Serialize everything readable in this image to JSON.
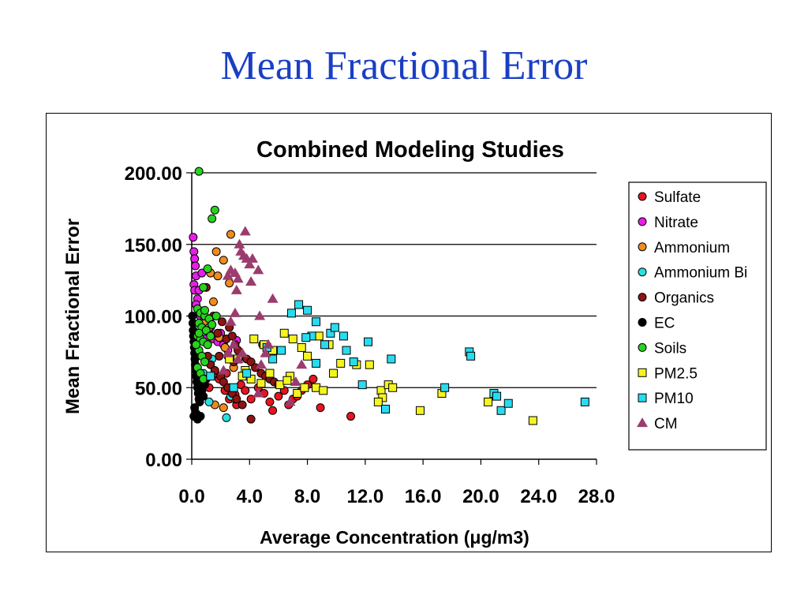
{
  "slide": {
    "title": "Mean Fractional Error"
  },
  "chart_data": {
    "type": "scatter",
    "title": "Combined Modeling Studies",
    "xlabel": "Average Concentration (μg/m3)",
    "ylabel": "Mean Fractional Error",
    "xlim": [
      0,
      28
    ],
    "ylim": [
      0,
      200
    ],
    "xticks": [
      "0.0",
      "4.0",
      "8.0",
      "12.0",
      "16.0",
      "20.0",
      "24.0",
      "28.0"
    ],
    "yticks": [
      "0.00",
      "50.00",
      "100.00",
      "150.00",
      "200.00"
    ],
    "grid": "horizontal",
    "legend_position": "right",
    "series": [
      {
        "name": "Sulfate",
        "marker": "circle",
        "color": "#e8141e",
        "points": [
          [
            1.2,
            50
          ],
          [
            1.6,
            60
          ],
          [
            1.9,
            56
          ],
          [
            2.3,
            48
          ],
          [
            2.6,
            42
          ],
          [
            3.0,
            45
          ],
          [
            3.4,
            52
          ],
          [
            3.7,
            48
          ],
          [
            4.1,
            42
          ],
          [
            4.6,
            50
          ],
          [
            5.0,
            46
          ],
          [
            5.4,
            40
          ],
          [
            5.6,
            34
          ],
          [
            6.0,
            44
          ],
          [
            6.4,
            48
          ],
          [
            6.7,
            38
          ],
          [
            7.0,
            42
          ],
          [
            7.3,
            44
          ],
          [
            7.6,
            48
          ],
          [
            8.0,
            52
          ],
          [
            8.4,
            56
          ],
          [
            8.9,
            36
          ],
          [
            11.0,
            30
          ],
          [
            2.4,
            60
          ],
          [
            3.1,
            38
          ]
        ]
      },
      {
        "name": "Nitrate",
        "marker": "circle",
        "color": "#e81ee8",
        "points": [
          [
            0.1,
            155
          ],
          [
            0.15,
            145
          ],
          [
            0.2,
            140
          ],
          [
            0.25,
            135
          ],
          [
            0.3,
            128
          ],
          [
            0.15,
            122
          ],
          [
            0.2,
            118
          ],
          [
            0.4,
            112
          ],
          [
            0.3,
            108
          ],
          [
            0.5,
            104
          ],
          [
            0.6,
            100
          ],
          [
            0.8,
            96
          ],
          [
            1.0,
            92
          ],
          [
            1.2,
            88
          ],
          [
            1.5,
            84
          ],
          [
            1.8,
            82
          ],
          [
            2.0,
            88
          ],
          [
            2.2,
            80
          ],
          [
            2.5,
            76
          ],
          [
            3.1,
            83
          ],
          [
            0.7,
            130
          ],
          [
            0.5,
            118
          ],
          [
            1.3,
            92
          ],
          [
            0.9,
            84
          ]
        ]
      },
      {
        "name": "Ammonium",
        "marker": "circle",
        "color": "#f08c1e",
        "points": [
          [
            2.7,
            157
          ],
          [
            1.7,
            145
          ],
          [
            2.2,
            139
          ],
          [
            1.3,
            130
          ],
          [
            1.8,
            128
          ],
          [
            1.5,
            110
          ],
          [
            2.6,
            123
          ],
          [
            0.9,
            95
          ],
          [
            1.2,
            92
          ],
          [
            1.9,
            85
          ],
          [
            2.3,
            78
          ],
          [
            2.5,
            72
          ],
          [
            2.9,
            64
          ],
          [
            1.6,
            38
          ],
          [
            2.2,
            36
          ],
          [
            3.0,
            42
          ]
        ]
      },
      {
        "name": "Ammonium Bi",
        "marker": "circle",
        "color": "#28e0e0",
        "points": [
          [
            1.2,
            40
          ],
          [
            2.4,
            29
          ],
          [
            2.7,
            44
          ],
          [
            1.4,
            70
          ],
          [
            0.8,
            60
          ]
        ]
      },
      {
        "name": "Organics",
        "marker": "circle",
        "color": "#8c1414",
        "points": [
          [
            1.0,
            120
          ],
          [
            1.5,
            100
          ],
          [
            1.8,
            88
          ],
          [
            2.1,
            96
          ],
          [
            2.4,
            84
          ],
          [
            2.6,
            92
          ],
          [
            2.8,
            86
          ],
          [
            3.0,
            80
          ],
          [
            3.2,
            76
          ],
          [
            3.5,
            72
          ],
          [
            3.8,
            70
          ],
          [
            4.1,
            68
          ],
          [
            4.4,
            64
          ],
          [
            4.8,
            60
          ],
          [
            5.1,
            58
          ],
          [
            5.4,
            56
          ],
          [
            5.7,
            54
          ],
          [
            6.0,
            52
          ],
          [
            1.3,
            66
          ],
          [
            1.6,
            62
          ],
          [
            2.0,
            58
          ],
          [
            2.2,
            54
          ],
          [
            2.5,
            50
          ],
          [
            2.8,
            46
          ],
          [
            3.1,
            42
          ],
          [
            3.5,
            38
          ],
          [
            4.1,
            28
          ],
          [
            4.9,
            80
          ],
          [
            5.2,
            78
          ],
          [
            1.1,
            72
          ],
          [
            1.9,
            72
          ],
          [
            2.9,
            68
          ]
        ]
      },
      {
        "name": "EC",
        "marker": "circle",
        "color": "#000000",
        "points": [
          [
            0.05,
            100
          ],
          [
            0.08,
            95
          ],
          [
            0.1,
            90
          ],
          [
            0.12,
            86
          ],
          [
            0.15,
            82
          ],
          [
            0.18,
            78
          ],
          [
            0.2,
            74
          ],
          [
            0.22,
            70
          ],
          [
            0.25,
            66
          ],
          [
            0.28,
            62
          ],
          [
            0.3,
            58
          ],
          [
            0.35,
            54
          ],
          [
            0.4,
            50
          ],
          [
            0.45,
            46
          ],
          [
            0.5,
            42
          ],
          [
            0.2,
            36
          ],
          [
            0.3,
            32
          ],
          [
            0.6,
            30
          ],
          [
            0.7,
            48
          ],
          [
            0.8,
            44
          ],
          [
            0.9,
            52
          ],
          [
            1.0,
            56
          ],
          [
            0.15,
            30
          ],
          [
            0.4,
            28
          ],
          [
            0.55,
            40
          ]
        ]
      },
      {
        "name": "Soils",
        "marker": "circle",
        "color": "#28d21e",
        "points": [
          [
            0.5,
            201
          ],
          [
            1.6,
            174
          ],
          [
            1.4,
            168
          ],
          [
            1.1,
            133
          ],
          [
            0.8,
            120
          ],
          [
            0.4,
            105
          ],
          [
            0.6,
            102
          ],
          [
            0.9,
            100
          ],
          [
            1.2,
            98
          ],
          [
            0.5,
            95
          ],
          [
            0.7,
            92
          ],
          [
            1.0,
            90
          ],
          [
            0.4,
            86
          ],
          [
            0.6,
            84
          ],
          [
            0.8,
            82
          ],
          [
            1.1,
            80
          ],
          [
            0.5,
            76
          ],
          [
            0.7,
            72
          ],
          [
            0.9,
            68
          ],
          [
            0.4,
            64
          ],
          [
            0.6,
            60
          ],
          [
            0.8,
            56
          ],
          [
            1.4,
            94
          ],
          [
            1.7,
            100
          ],
          [
            0.3,
            80
          ],
          [
            1.3,
            86
          ],
          [
            0.9,
            104
          ],
          [
            0.5,
            88
          ]
        ]
      },
      {
        "name": "PM2.5",
        "marker": "square",
        "color": "#f5f51e",
        "points": [
          [
            2.6,
            70
          ],
          [
            3.2,
            70
          ],
          [
            3.7,
            62
          ],
          [
            4.3,
            84
          ],
          [
            5.0,
            80
          ],
          [
            5.6,
            76
          ],
          [
            6.4,
            88
          ],
          [
            7.0,
            84
          ],
          [
            7.6,
            78
          ],
          [
            8.0,
            72
          ],
          [
            8.8,
            86
          ],
          [
            9.5,
            80
          ],
          [
            4.1,
            56
          ],
          [
            5.4,
            60
          ],
          [
            6.1,
            52
          ],
          [
            6.8,
            58
          ],
          [
            7.3,
            46
          ],
          [
            7.8,
            50
          ],
          [
            8.6,
            50
          ],
          [
            9.1,
            48
          ],
          [
            9.8,
            60
          ],
          [
            11.4,
            66
          ],
          [
            12.3,
            66
          ],
          [
            13.1,
            48
          ],
          [
            13.2,
            43
          ],
          [
            13.6,
            52
          ],
          [
            13.9,
            50
          ],
          [
            15.8,
            34
          ],
          [
            17.3,
            46
          ],
          [
            20.5,
            40
          ],
          [
            23.6,
            27
          ],
          [
            3.5,
            58
          ],
          [
            4.8,
            53
          ],
          [
            6.6,
            55
          ],
          [
            12.9,
            40
          ],
          [
            10.3,
            67
          ]
        ]
      },
      {
        "name": "PM10",
        "marker": "square",
        "color": "#28dcf0",
        "points": [
          [
            1.3,
            58
          ],
          [
            2.9,
            50
          ],
          [
            3.8,
            60
          ],
          [
            5.2,
            78
          ],
          [
            5.6,
            70
          ],
          [
            6.2,
            76
          ],
          [
            6.9,
            102
          ],
          [
            7.4,
            108
          ],
          [
            8.0,
            104
          ],
          [
            8.3,
            86
          ],
          [
            8.6,
            96
          ],
          [
            9.2,
            80
          ],
          [
            9.6,
            88
          ],
          [
            9.9,
            92
          ],
          [
            10.5,
            86
          ],
          [
            10.7,
            76
          ],
          [
            11.2,
            68
          ],
          [
            11.8,
            52
          ],
          [
            12.2,
            82
          ],
          [
            13.4,
            35
          ],
          [
            13.8,
            70
          ],
          [
            17.5,
            50
          ],
          [
            19.2,
            75
          ],
          [
            19.3,
            72
          ],
          [
            20.9,
            46
          ],
          [
            21.1,
            44
          ],
          [
            21.4,
            34
          ],
          [
            21.9,
            39
          ],
          [
            27.2,
            40
          ],
          [
            7.9,
            85
          ],
          [
            8.6,
            67
          ]
        ]
      },
      {
        "name": "CM",
        "marker": "triangle",
        "color": "#9c3c6e",
        "points": [
          [
            3.7,
            159
          ],
          [
            3.3,
            150
          ],
          [
            3.4,
            145
          ],
          [
            3.6,
            142
          ],
          [
            3.8,
            140
          ],
          [
            4.0,
            136
          ],
          [
            4.2,
            140
          ],
          [
            2.5,
            128
          ],
          [
            2.7,
            132
          ],
          [
            3.0,
            130
          ],
          [
            3.2,
            126
          ],
          [
            4.6,
            132
          ],
          [
            3.1,
            118
          ],
          [
            4.1,
            124
          ],
          [
            5.6,
            112
          ],
          [
            4.7,
            100
          ],
          [
            2.7,
            96
          ],
          [
            3.0,
            102
          ],
          [
            2.5,
            74
          ],
          [
            2.9,
            80
          ],
          [
            3.2,
            70
          ],
          [
            3.5,
            74
          ],
          [
            5.1,
            74
          ],
          [
            7.6,
            66
          ],
          [
            4.8,
            66
          ],
          [
            7.2,
            54
          ],
          [
            4.6,
            46
          ],
          [
            6.8,
            40
          ],
          [
            5.3,
            80
          ],
          [
            2.2,
            62
          ]
        ]
      }
    ]
  }
}
